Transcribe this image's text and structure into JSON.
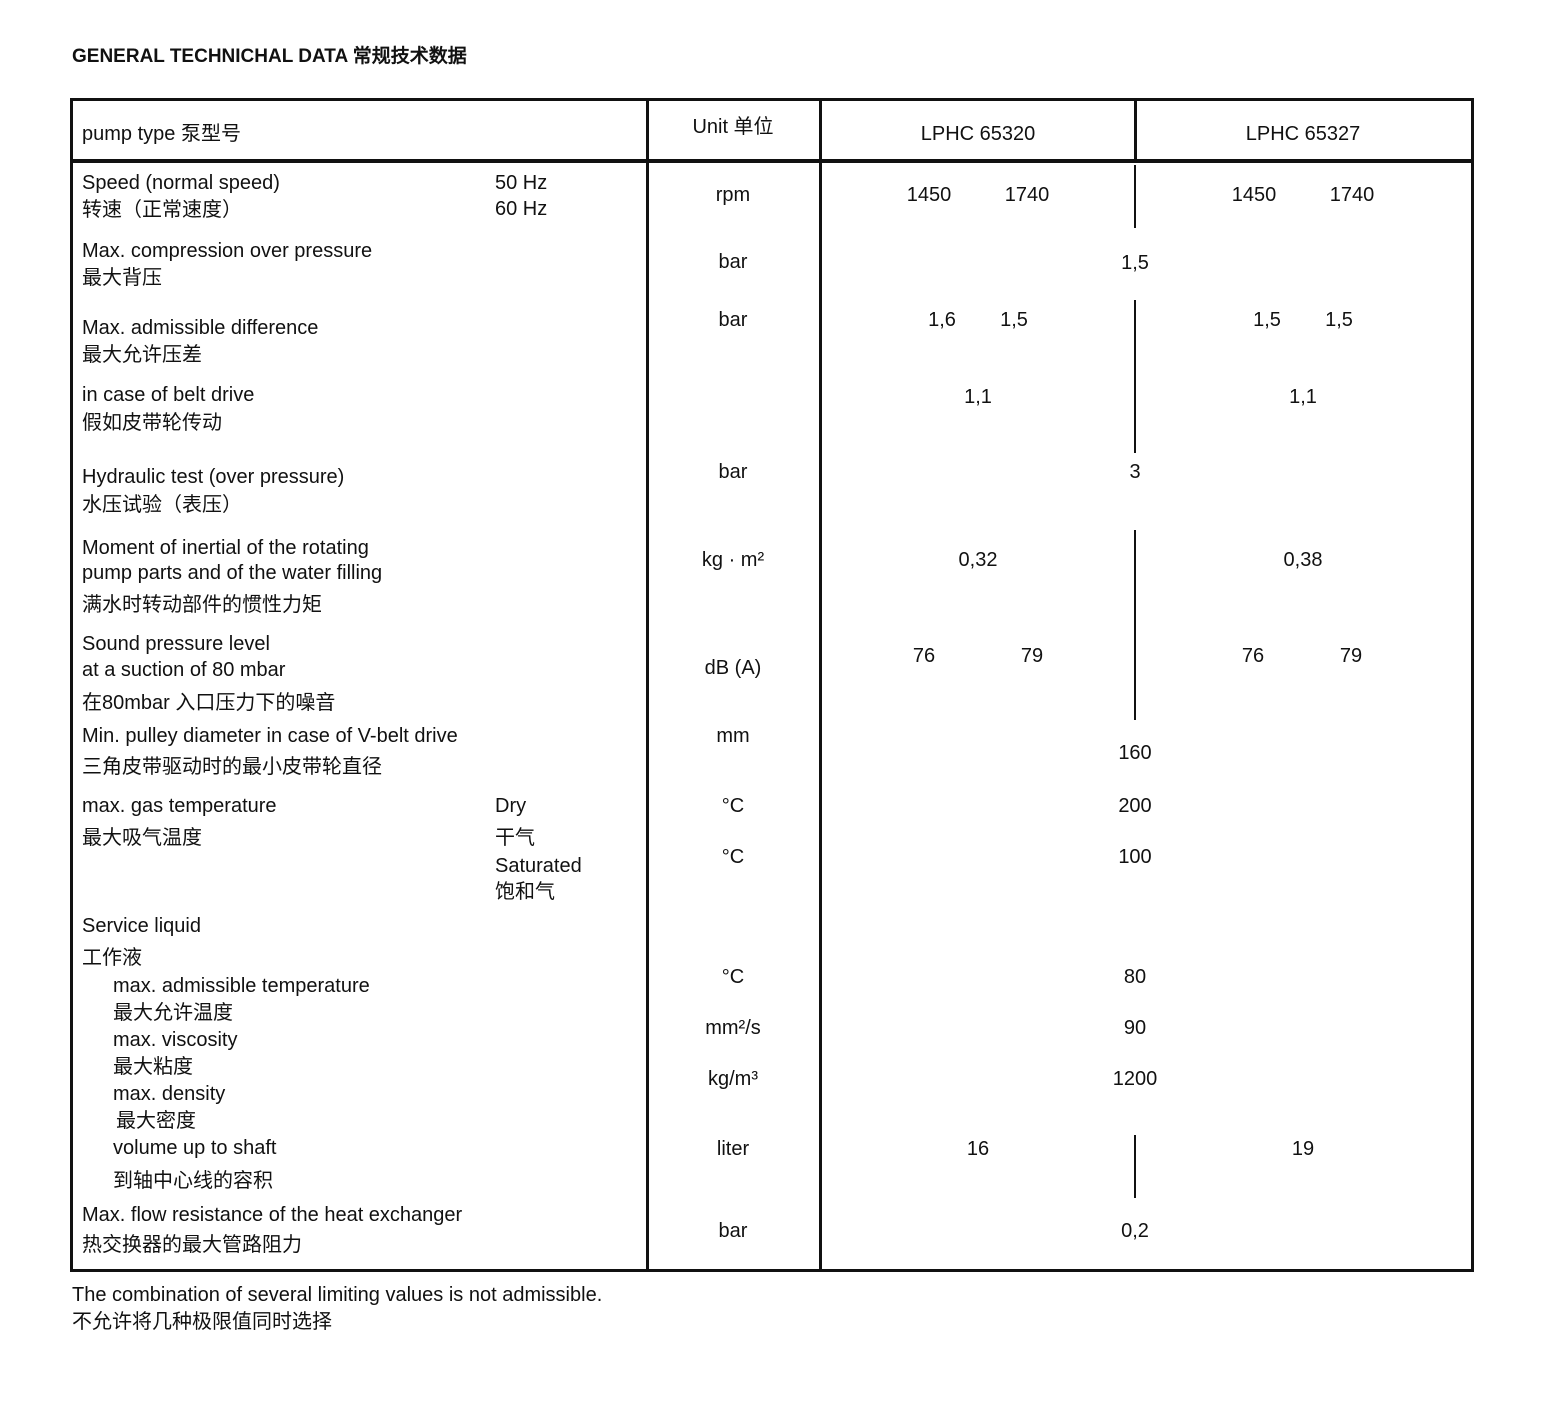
{
  "title": "GENERAL TECHNICHAL DATA  常规技术数据",
  "header": {
    "pump_type": "pump type 泵型号",
    "unit": "Unit 单位",
    "models": [
      "LPHC 65320",
      "LPHC 65327"
    ]
  },
  "rows": {
    "speed": {
      "en": "Speed (normal speed)",
      "zh": "转速（正常速度）",
      "sub": [
        "50 Hz",
        "60 Hz"
      ],
      "unit": "rpm",
      "a": [
        "1450",
        "1740"
      ],
      "b": [
        "1450",
        "1740"
      ]
    },
    "compression": {
      "en": "Max. compression over pressure",
      "zh": "最大背压",
      "unit": "bar",
      "value": "1,5"
    },
    "difference": {
      "en": "Max. admissible difference",
      "zh": "最大允许压差",
      "unit": "bar",
      "a": [
        "1,6",
        "1,5"
      ],
      "b": [
        "1,5",
        "1,5"
      ]
    },
    "belt": {
      "en": "in case of belt drive",
      "zh": "假如皮带轮传动",
      "a": "1,1",
      "b": "1,1"
    },
    "hydraulic": {
      "en": "Hydraulic test (over pressure)",
      "zh": "水压试验（表压）",
      "unit": "bar",
      "value": "3"
    },
    "inertia": {
      "en1": "Moment of inertial of the rotating",
      "en2": "pump parts and of the water filling",
      "zh": "满水时转动部件的惯性力矩",
      "unit": "kg · m²",
      "a": "0,32",
      "b": "0,38"
    },
    "sound": {
      "en1": "Sound pressure level",
      "en2": "at a suction of 80 mbar",
      "zh": "在80mbar 入口压力下的噪音",
      "unit": "dB (A)",
      "a": [
        "76",
        "79"
      ],
      "b": [
        "76",
        "79"
      ]
    },
    "pulley": {
      "en": "Min. pulley diameter in case of V-belt drive",
      "zh": "三角皮带驱动时的最小皮带轮直径",
      "unit": "mm",
      "value": "160"
    },
    "gas_temp": {
      "en": "max. gas temperature",
      "zh": "最大吸气温度",
      "dry_en": "Dry",
      "dry_zh": "干气",
      "sat_en": "Saturated",
      "sat_zh": "饱和气",
      "dry_unit": "°C",
      "dry_value": "200",
      "sat_unit": "°C",
      "sat_value": "100"
    },
    "service": {
      "en": "Service liquid",
      "zh": "工作液",
      "temp": {
        "en": "max. admissible temperature",
        "zh": "最大允许温度",
        "unit": "°C",
        "value": "80"
      },
      "viscosity": {
        "en": "max. viscosity",
        "zh": "最大粘度",
        "unit": "mm²/s",
        "value": "90"
      },
      "density": {
        "en": "max. density",
        "zh": "最大密度",
        "unit": "kg/m³",
        "value": "1200"
      },
      "volume": {
        "en": "volume up to shaft",
        "zh": "到轴中心线的容积",
        "unit": "liter",
        "a": "16",
        "b": "19"
      }
    },
    "heat": {
      "en": "Max. flow resistance of the heat exchanger",
      "zh": "热交换器的最大管路阻力",
      "unit": "bar",
      "value": "0,2"
    }
  },
  "footer": {
    "en": "The combination of several limiting values is not admissible.",
    "zh": "不允许将几种极限值同时选择"
  }
}
